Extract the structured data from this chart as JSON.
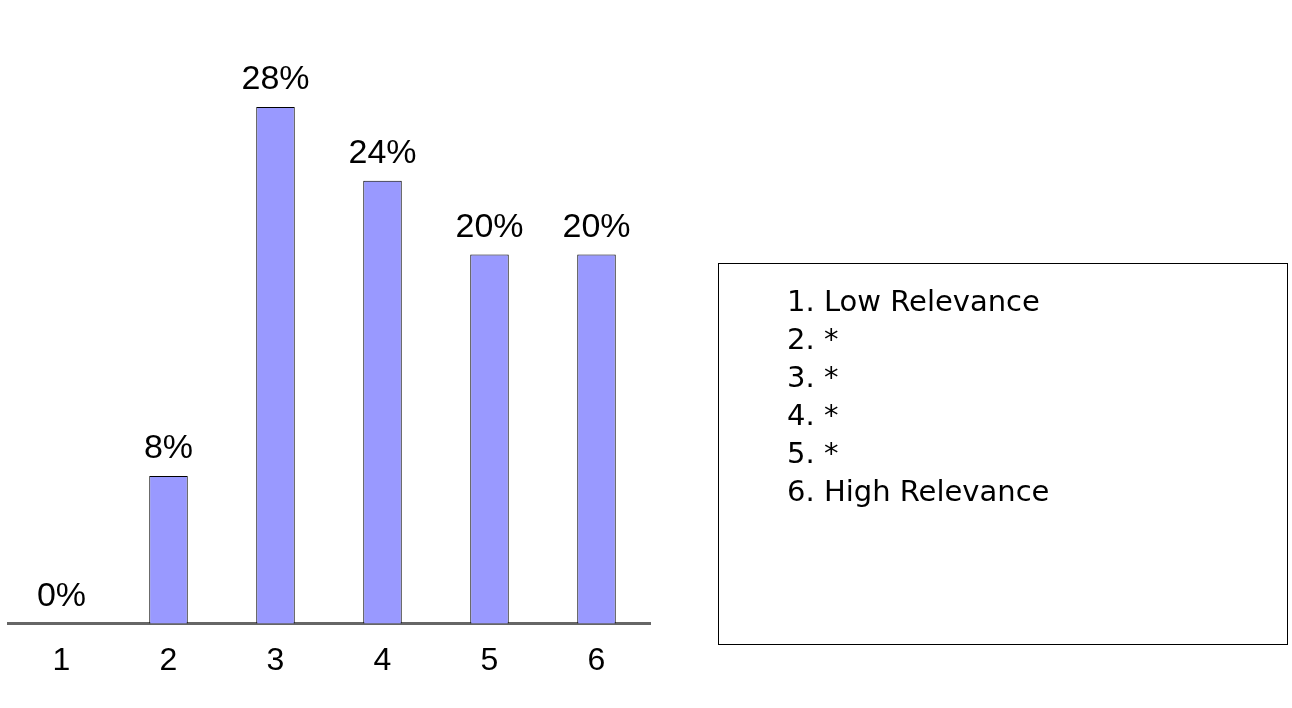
{
  "chart_data": {
    "type": "bar",
    "categories": [
      "1",
      "2",
      "3",
      "4",
      "5",
      "6"
    ],
    "values": [
      0,
      8,
      28,
      24,
      20,
      20
    ],
    "color": "#9999ff",
    "value_labels": [
      "0%",
      "8%",
      "28%",
      "24%",
      "20%",
      "20%"
    ],
    "legend": false,
    "grid": false,
    "annotations": [
      "1. Low Relevance",
      "2. *",
      "3. *",
      "4. *",
      "5. *",
      "6. High Relevance"
    ]
  }
}
